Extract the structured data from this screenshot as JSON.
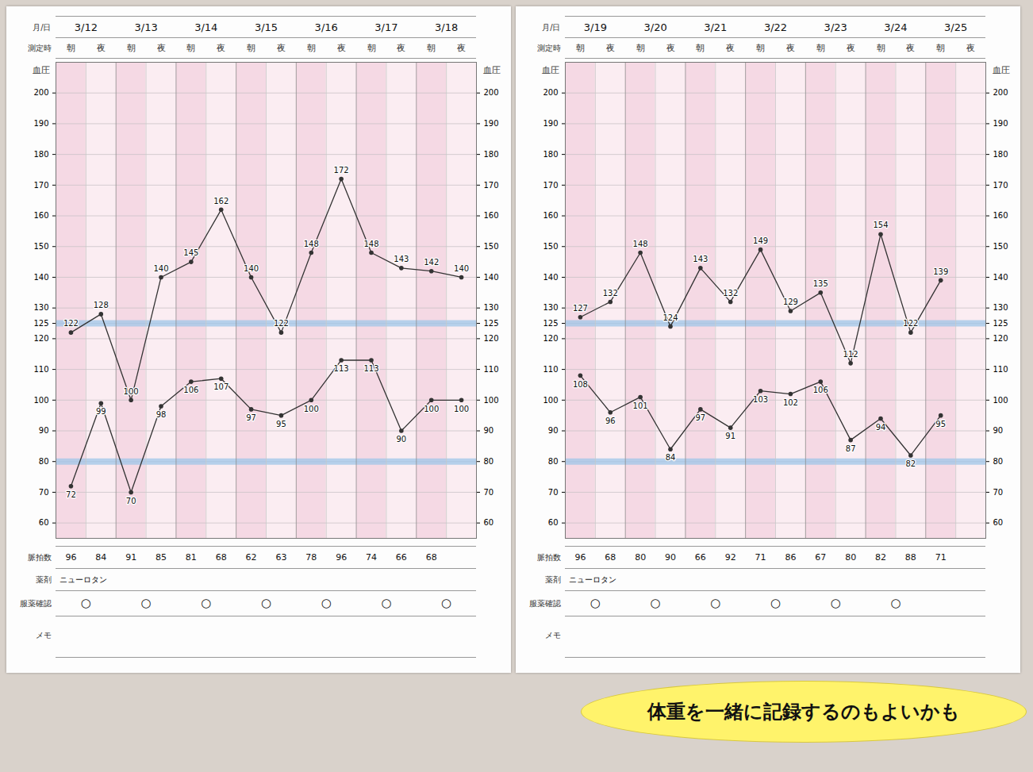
{
  "chart_data": [
    {
      "type": "line",
      "row_labels": {
        "date": "月/日",
        "time": "測定時",
        "pulse": "脈拍数",
        "medicine": "薬剤",
        "check": "服薬確認",
        "memo": "メモ"
      },
      "y_label": "血圧",
      "dates": [
        "3/12",
        "3/13",
        "3/14",
        "3/15",
        "3/16",
        "3/17",
        "3/18"
      ],
      "categories": [
        "朝",
        "夜",
        "朝",
        "夜",
        "朝",
        "夜",
        "朝",
        "夜",
        "朝",
        "夜",
        "朝",
        "夜",
        "朝",
        "夜"
      ],
      "series": [
        {
          "color": "#333333",
          "marker": "circle",
          "values": [
            122,
            128,
            100,
            140,
            145,
            162,
            140,
            122,
            148,
            172,
            148,
            143,
            142,
            140
          ]
        },
        {
          "color": "#333333",
          "marker": "circle",
          "values": [
            72,
            99,
            70,
            98,
            106,
            107,
            97,
            95,
            100,
            113,
            113,
            90,
            100,
            100
          ]
        }
      ],
      "pulse": [
        96,
        84,
        91,
        85,
        81,
        68,
        62,
        63,
        78,
        96,
        74,
        66,
        68,
        null
      ],
      "medicine": "ニューロタン",
      "check": [
        "○",
        "○",
        "○",
        "○",
        "○",
        "○",
        "○"
      ],
      "reference_lines": [
        125,
        80
      ],
      "ylim": [
        55,
        210
      ],
      "yticks": [
        60,
        70,
        80,
        90,
        100,
        110,
        120,
        125,
        130,
        140,
        150,
        160,
        170,
        180,
        190,
        200
      ],
      "grid": true,
      "data_labels": true
    },
    {
      "type": "line",
      "row_labels": {
        "date": "月/日",
        "time": "測定時",
        "pulse": "脈拍数",
        "medicine": "薬剤",
        "check": "服薬確認",
        "memo": "メモ"
      },
      "y_label": "血圧",
      "dates": [
        "3/19",
        "3/20",
        "3/21",
        "3/22",
        "3/23",
        "3/24",
        "3/25"
      ],
      "categories": [
        "朝",
        "夜",
        "朝",
        "夜",
        "朝",
        "夜",
        "朝",
        "夜",
        "朝",
        "夜",
        "朝",
        "夜",
        "朝",
        "夜"
      ],
      "series": [
        {
          "color": "#333333",
          "marker": "circle",
          "values": [
            127,
            132,
            148,
            124,
            143,
            132,
            149,
            129,
            135,
            112,
            154,
            122,
            139,
            null
          ]
        },
        {
          "color": "#333333",
          "marker": "circle",
          "values": [
            108,
            96,
            101,
            84,
            97,
            91,
            103,
            102,
            106,
            87,
            94,
            82,
            95,
            null
          ]
        }
      ],
      "pulse": [
        96,
        68,
        80,
        90,
        66,
        92,
        71,
        86,
        67,
        80,
        82,
        88,
        71,
        null
      ],
      "medicine": "ニューロタン",
      "check": [
        "○",
        "○",
        "○",
        "○",
        "○",
        "○"
      ],
      "reference_lines": [
        125,
        80
      ],
      "ylim": [
        55,
        210
      ],
      "yticks": [
        60,
        70,
        80,
        90,
        100,
        110,
        120,
        125,
        130,
        140,
        150,
        160,
        170,
        180,
        190,
        200
      ],
      "grid": true,
      "data_labels": true,
      "annotation": "体重を一緒に記録するのもよいかも"
    }
  ]
}
